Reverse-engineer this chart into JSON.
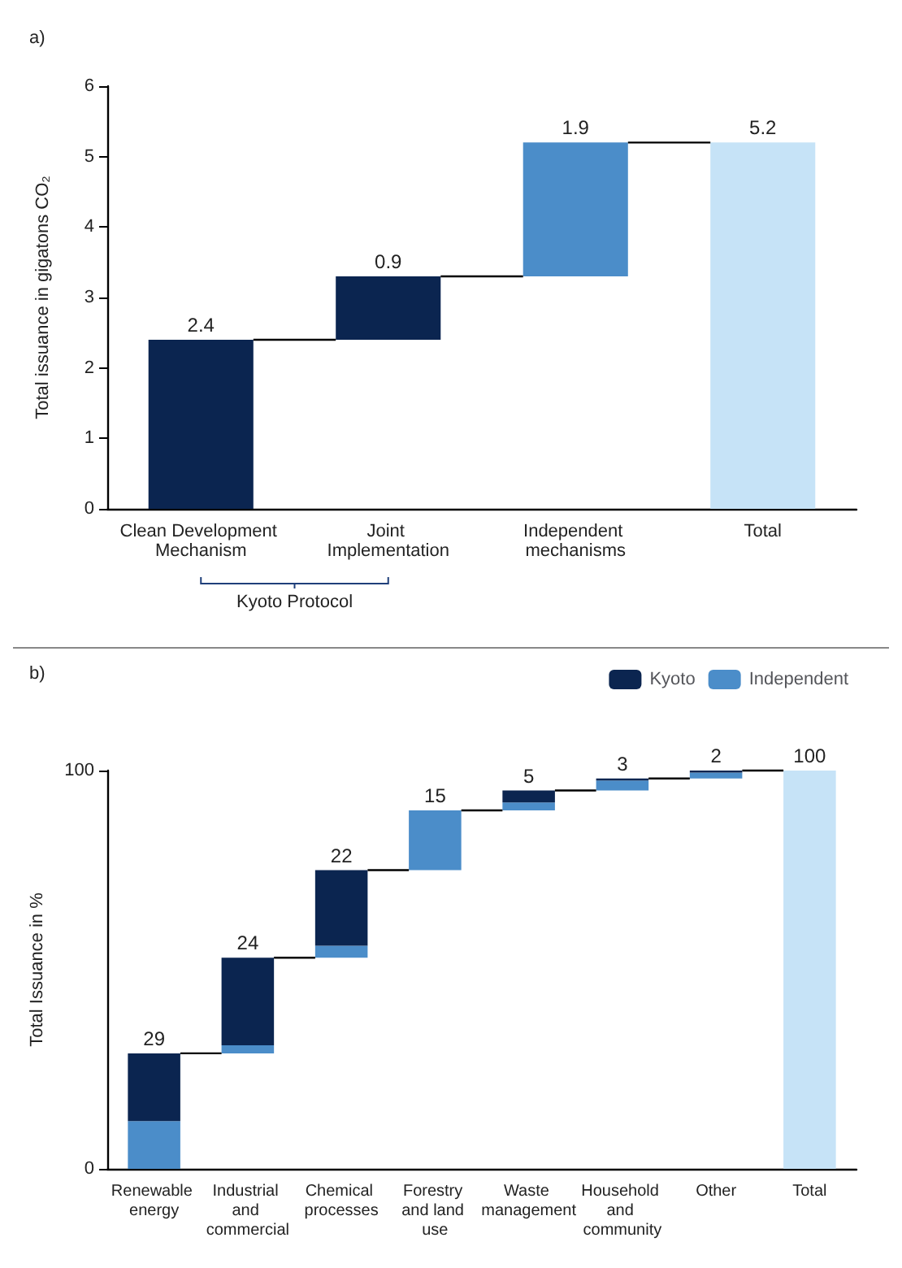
{
  "chart_data": [
    {
      "type": "bar",
      "title": "a)",
      "ylabel": "Total issuance in gigatons CO₂",
      "categories": [
        "Clean Development Mechanism",
        "Joint Implementation",
        "Independent mechanisms",
        "Total"
      ],
      "values": [
        2.4,
        0.9,
        1.9,
        5.2
      ],
      "base": [
        0,
        2.4,
        3.3,
        0
      ],
      "colors": [
        "#0b2550",
        "#0b2550",
        "#4b8dc9",
        "#c6e3f7"
      ],
      "ylim": [
        0,
        6
      ],
      "yticks": [
        0,
        1,
        2,
        3,
        4,
        5,
        6
      ],
      "grid": false,
      "data_labels": true,
      "legend": false,
      "annotations": [
        "Kyoto Protocol"
      ]
    },
    {
      "type": "bar",
      "title": "b)",
      "ylabel": "Total Issuance in %",
      "categories": [
        "Renewable energy",
        "Industrial and commercial",
        "Chemical processes",
        "Forestry and land use",
        "Waste management",
        "Household and community",
        "Other",
        "Total"
      ],
      "series": [
        {
          "name": "Independent",
          "color": "#4b8dc9",
          "values": [
            12,
            2,
            3,
            15,
            2,
            2.5,
            1.5,
            null
          ],
          "base": [
            0,
            29,
            53,
            75,
            90,
            95,
            98,
            null
          ]
        },
        {
          "name": "Kyoto",
          "color": "#0b2550",
          "values": [
            17,
            22,
            19,
            null,
            3,
            0.5,
            0.5,
            null
          ],
          "base": [
            12,
            31,
            56,
            null,
            92,
            97.5,
            99.5,
            null
          ]
        },
        {
          "color": "#c6e3f7",
          "values": [
            null,
            null,
            null,
            null,
            null,
            null,
            null,
            100
          ]
        }
      ],
      "totals": [
        "29",
        "24",
        "22",
        "15",
        "5",
        "3",
        "2",
        "100"
      ],
      "ylim": [
        0,
        100
      ],
      "yticks": [
        0,
        100
      ],
      "grid": false,
      "legend": "top right"
    }
  ]
}
